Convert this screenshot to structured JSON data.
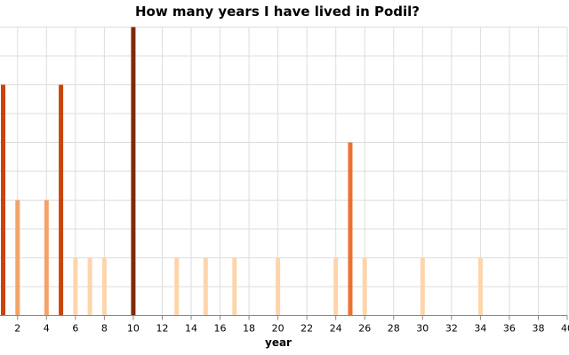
{
  "chart_data": {
    "type": "bar",
    "title": "How many years I have lived in Podil?",
    "xlabel": "year",
    "ylabel": "",
    "xlim": [
      1,
      40
    ],
    "ylim": [
      0,
      5
    ],
    "x_ticks": [
      2,
      4,
      6,
      8,
      10,
      12,
      14,
      16,
      18,
      20,
      22,
      24,
      26,
      28,
      30,
      32,
      34,
      36,
      38,
      40
    ],
    "y_ticks": [
      0,
      0.5,
      1,
      1.5,
      2,
      2.5,
      3,
      3.5,
      4,
      4.5,
      5
    ],
    "y_tick_labels_visible": false,
    "color_scale": "oranges-by-value",
    "grid": true,
    "legend": "none",
    "points": [
      {
        "x": 1,
        "y": 4
      },
      {
        "x": 2,
        "y": 2
      },
      {
        "x": 4,
        "y": 2
      },
      {
        "x": 5,
        "y": 4
      },
      {
        "x": 6,
        "y": 1
      },
      {
        "x": 7,
        "y": 1
      },
      {
        "x": 8,
        "y": 1
      },
      {
        "x": 10,
        "y": 5
      },
      {
        "x": 13,
        "y": 1
      },
      {
        "x": 15,
        "y": 1
      },
      {
        "x": 17,
        "y": 1
      },
      {
        "x": 20,
        "y": 1
      },
      {
        "x": 24,
        "y": 1
      },
      {
        "x": 25,
        "y": 3
      },
      {
        "x": 26,
        "y": 1
      },
      {
        "x": 30,
        "y": 1
      },
      {
        "x": 34,
        "y": 1
      }
    ],
    "value_colors": {
      "1": "#fdd5ab",
      "2": "#f4a468",
      "3": "#ee7030",
      "4": "#c9450c",
      "5": "#7d2a0a"
    }
  }
}
